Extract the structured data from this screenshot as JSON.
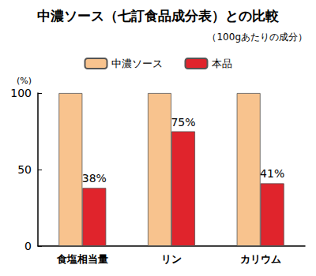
{
  "chart_data": {
    "type": "bar",
    "title": "中濃ソース（七訂食品成分表）との比較",
    "subtitle": "（100gあたりの成分）",
    "y_label": "(%)",
    "categories": [
      "食塩相当量",
      "リン",
      "カリウム"
    ],
    "series": [
      {
        "name": "中濃ソース",
        "color": "#f8c38e",
        "values": [
          100,
          100,
          100
        ],
        "data_labels": false
      },
      {
        "name": "本品",
        "color": "#e0242c",
        "values": [
          38,
          75,
          41
        ],
        "data_labels": true,
        "value_labels": [
          "38%",
          "75%",
          "41%"
        ]
      }
    ],
    "ylim": [
      0,
      100
    ],
    "yticks": [
      0,
      50,
      100
    ],
    "grid": false,
    "legend": "top"
  }
}
